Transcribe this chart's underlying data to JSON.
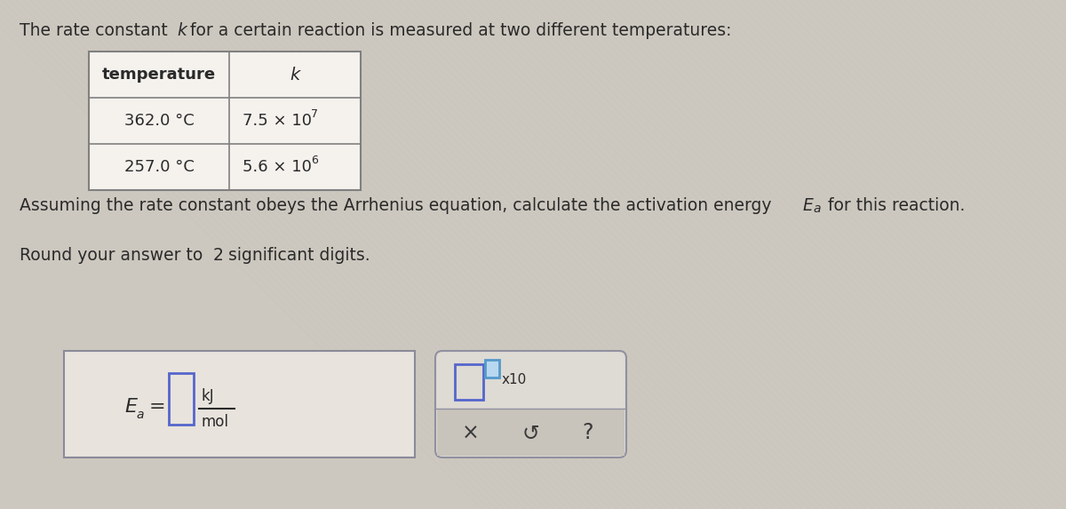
{
  "bg_color": "#cdc8bf",
  "text_color": "#2a2a2a",
  "title_text_parts": [
    {
      "text": "The rate constant ",
      "style": "normal"
    },
    {
      "text": "k",
      "style": "italic"
    },
    {
      "text": " for a certain reaction is measured at two different temperatures:",
      "style": "normal"
    }
  ],
  "table_header_col1": "temperature",
  "table_header_col2": "k",
  "table_row1_col1": "362.0 °C",
  "table_row1_col2": "7.5 × 10",
  "table_row1_exp": "7",
  "table_row2_col1": "257.0 °C",
  "table_row2_col2": "5.6 × 10",
  "table_row2_exp": "6",
  "arrhenius_line1": "Assuming the rate constant obeys the Arrhenius equation, calculate the activation energy ",
  "arrhenius_ea": "E",
  "arrhenius_sub": "a",
  "arrhenius_line2": " for this reaction.",
  "round_text_pre": "Round your answer to ",
  "round_num": "2",
  "round_text_post": " significant digits.",
  "table_bg": "#f5f2ee",
  "table_border": "#808080",
  "box1_bg": "#e8e3dc",
  "box1_border": "#8a8a9a",
  "box2_bg": "#dedad4",
  "box2_border": "#9090a0",
  "box2_bot_bg": "#c8c4bc",
  "input_border": "#5566cc",
  "input_bg": "#e8e3dc",
  "tiny_border": "#5599cc",
  "tiny_bg": "#b8d8f0",
  "unit_line_color": "#2a2a2a"
}
